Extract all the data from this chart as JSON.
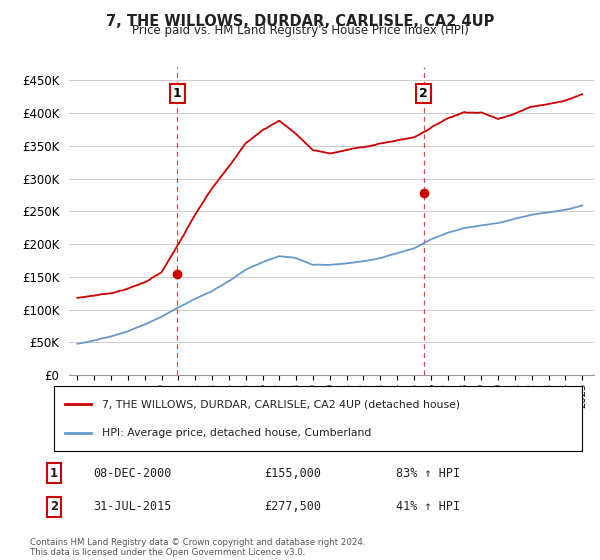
{
  "title": "7, THE WILLOWS, DURDAR, CARLISLE, CA2 4UP",
  "subtitle": "Price paid vs. HM Land Registry's House Price Index (HPI)",
  "ylabel_ticks": [
    "£0",
    "£50K",
    "£100K",
    "£150K",
    "£200K",
    "£250K",
    "£300K",
    "£350K",
    "£400K",
    "£450K"
  ],
  "ytick_values": [
    0,
    50000,
    100000,
    150000,
    200000,
    250000,
    300000,
    350000,
    400000,
    450000
  ],
  "ylim": [
    0,
    470000
  ],
  "xlim_start": 1994.5,
  "xlim_end": 2025.7,
  "sale1_x": 2000.93,
  "sale1_y": 155000,
  "sale2_x": 2015.58,
  "sale2_y": 277500,
  "red_color": "#cc0000",
  "blue_color": "#6699cc",
  "background_color": "#ffffff",
  "grid_color": "#cccccc",
  "legend_label_red": "7, THE WILLOWS, DURDAR, CARLISLE, CA2 4UP (detached house)",
  "legend_label_blue": "HPI: Average price, detached house, Cumberland",
  "annotation1_label": "1",
  "annotation1_date": "08-DEC-2000",
  "annotation1_price": "£155,000",
  "annotation1_hpi": "83% ↑ HPI",
  "annotation2_label": "2",
  "annotation2_date": "31-JUL-2015",
  "annotation2_price": "£277,500",
  "annotation2_hpi": "41% ↑ HPI",
  "footer": "Contains HM Land Registry data © Crown copyright and database right 2024.\nThis data is licensed under the Open Government Licence v3.0.",
  "red_knots_x": [
    1995,
    1996,
    1997,
    1998,
    1999,
    2000,
    2001,
    2002,
    2003,
    2004,
    2005,
    2006,
    2007,
    2008,
    2009,
    2010,
    2011,
    2012,
    2013,
    2014,
    2015,
    2016,
    2017,
    2018,
    2019,
    2020,
    2021,
    2022,
    2023,
    2024,
    2025
  ],
  "red_knots_y": [
    118000,
    122000,
    126000,
    133000,
    143000,
    158000,
    200000,
    245000,
    285000,
    320000,
    355000,
    375000,
    390000,
    370000,
    345000,
    340000,
    345000,
    350000,
    355000,
    360000,
    365000,
    380000,
    395000,
    405000,
    405000,
    395000,
    405000,
    415000,
    420000,
    425000,
    435000
  ],
  "blue_knots_x": [
    1995,
    1996,
    1997,
    1998,
    1999,
    2000,
    2001,
    2002,
    2003,
    2004,
    2005,
    2006,
    2007,
    2008,
    2009,
    2010,
    2011,
    2012,
    2013,
    2014,
    2015,
    2016,
    2017,
    2018,
    2019,
    2020,
    2021,
    2022,
    2023,
    2024,
    2025
  ],
  "blue_knots_y": [
    48000,
    53000,
    60000,
    68000,
    78000,
    90000,
    105000,
    118000,
    130000,
    145000,
    163000,
    175000,
    185000,
    182000,
    172000,
    172000,
    175000,
    178000,
    183000,
    190000,
    197000,
    210000,
    220000,
    228000,
    232000,
    235000,
    242000,
    248000,
    252000,
    256000,
    262000
  ]
}
